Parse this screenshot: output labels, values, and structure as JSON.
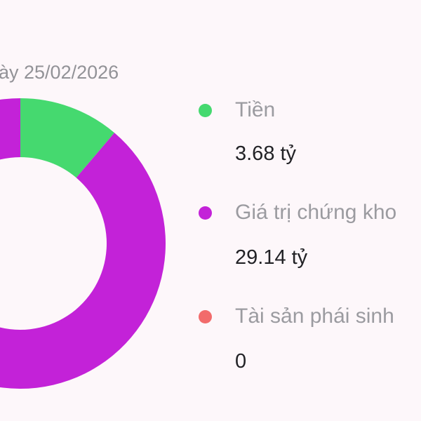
{
  "header": {
    "date_text": "ày 25/02/2026"
  },
  "chart_data": {
    "type": "pie",
    "variant": "donut",
    "categories": [
      "Tiền",
      "Giá trị chứng kho",
      "Tài sản phái sinh"
    ],
    "values": [
      3.68,
      29.14,
      0
    ],
    "unit": "tỷ",
    "colors": [
      "#45d96f",
      "#c322d8",
      "#f26b6b"
    ],
    "legend_position": "right"
  },
  "legend": [
    {
      "label": "Tiền",
      "value": "3.68 tỷ",
      "color": "#45d96f"
    },
    {
      "label": "Giá trị chứng kho",
      "value": "29.14 tỷ",
      "color": "#c322d8"
    },
    {
      "label": "Tài sản phái sinh",
      "value": "0",
      "color": "#f26b6b"
    }
  ]
}
